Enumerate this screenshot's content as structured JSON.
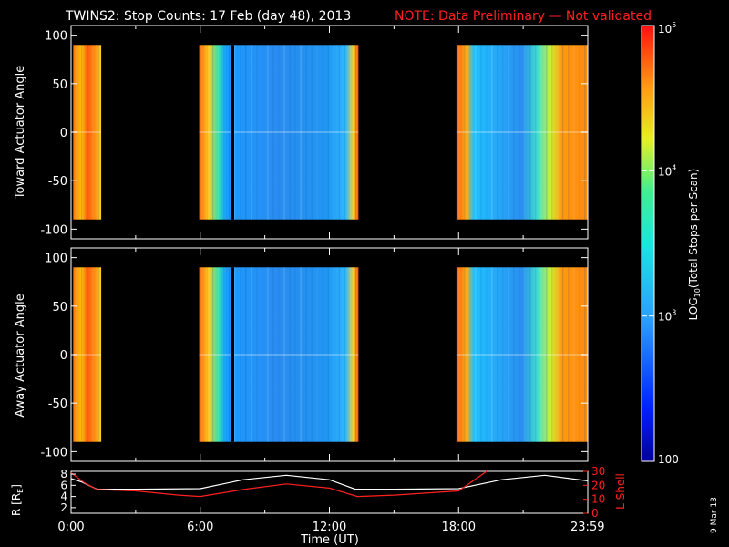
{
  "title": {
    "main": "TWINS2: Stop Counts: 17 Feb (day  48), 2013",
    "note": "NOTE: Data Preliminary — Not validated"
  },
  "chart_data": [
    {
      "type": "heatmap",
      "name": "toward-panel",
      "ylabel": "Toward Actuator Angle",
      "ylim": [
        -110,
        110
      ],
      "yticks": [
        100,
        50,
        0,
        -50,
        -100
      ],
      "xlim": [
        0,
        24
      ],
      "angle_range": [
        -90,
        90
      ],
      "data_segments": [
        {
          "t_start": 0.1,
          "t_end": 1.4,
          "level": "high"
        },
        {
          "t_start": 5.95,
          "t_end": 13.35,
          "level": "mixed"
        },
        {
          "t_start": 17.9,
          "t_end": 23.99,
          "level": "mixed"
        }
      ]
    },
    {
      "type": "heatmap",
      "name": "away-panel",
      "ylabel": "Away Actuator Angle",
      "ylim": [
        -110,
        110
      ],
      "yticks": [
        100,
        50,
        0,
        -50,
        -100
      ],
      "xlim": [
        0,
        24
      ],
      "angle_range": [
        -90,
        90
      ],
      "data_segments": [
        {
          "t_start": 0.1,
          "t_end": 1.4,
          "level": "high"
        },
        {
          "t_start": 5.95,
          "t_end": 13.35,
          "level": "mixed"
        },
        {
          "t_start": 17.9,
          "t_end": 23.99,
          "level": "mixed"
        }
      ]
    },
    {
      "type": "line",
      "name": "orbit-panel",
      "xlabel": "Time (UT)",
      "xticks": [
        "0:00",
        "6:00",
        "12:00",
        "18:00",
        "23:59"
      ],
      "xtick_hours": [
        0,
        6,
        12,
        18,
        23.99
      ],
      "ylabel_left": "R [R",
      "ylabel_left_sub": "E",
      "ylabel_left_close": "]",
      "ylim_left": [
        1,
        8.5
      ],
      "yticks_left": [
        8,
        6,
        4,
        2
      ],
      "ylabel_right": "L Shell",
      "ylim_right": [
        0,
        30
      ],
      "yticks_right": [
        30,
        20,
        10,
        0
      ],
      "series": [
        {
          "name": "R",
          "color": "#ffffff",
          "x": [
            0,
            0.5,
            1.2,
            3,
            6,
            8,
            10,
            12,
            13.2,
            15,
            18,
            20,
            22,
            24
          ],
          "y": [
            7.2,
            6.6,
            5.3,
            5.3,
            5.4,
            7.0,
            7.8,
            7.0,
            5.3,
            5.3,
            5.4,
            7.0,
            7.8,
            6.8
          ]
        },
        {
          "name": "L Shell",
          "color": "#ff2020",
          "x": [
            0,
            0.6,
            1.2,
            3,
            5,
            6,
            8,
            10,
            12,
            13.3,
            15,
            18,
            19.3
          ],
          "y": [
            29,
            22,
            17,
            16,
            13,
            12,
            17,
            21,
            18,
            12,
            13,
            16,
            30
          ]
        }
      ]
    },
    {
      "type": "colorbar",
      "name": "colorbar",
      "scale": "log",
      "range": [
        100,
        100000
      ],
      "tick_labels": [
        {
          "value": 100000,
          "base": "10",
          "exp": "5"
        },
        {
          "value": 10000,
          "base": "10",
          "exp": "4"
        },
        {
          "value": 1000,
          "base": "10",
          "exp": "3"
        },
        {
          "value": 100,
          "base": "100",
          "exp": ""
        }
      ],
      "label": "LOG",
      "label_sub": "10",
      "label_rest": "(Total Stops per Scan)"
    }
  ],
  "date_stamp": "9 Mar 13",
  "colors": {
    "note": "#ff2020",
    "background": "#000000",
    "axis": "#ffffff"
  }
}
